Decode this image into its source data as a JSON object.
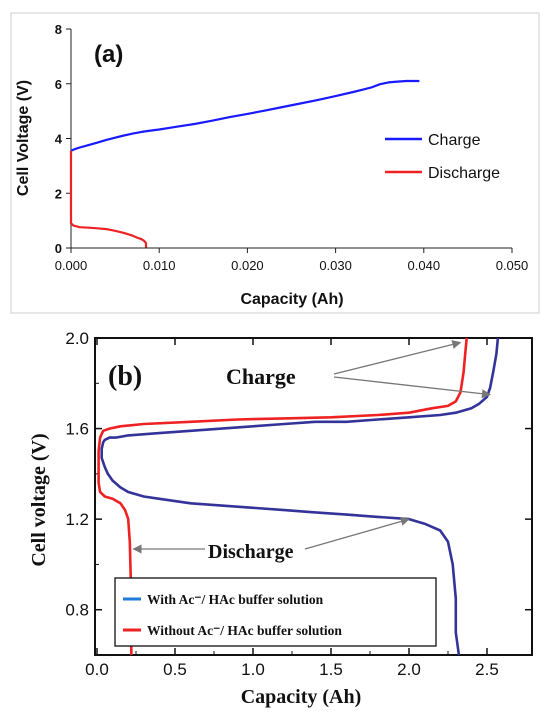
{
  "chart_data": [
    {
      "type": "line",
      "panel_label": "(a)",
      "xlabel": "Capacity (Ah)",
      "ylabel": "Cell Voltage (V)",
      "xlim": [
        0,
        0.05
      ],
      "ylim": [
        0,
        8
      ],
      "x_ticks": [
        "0.000",
        "0.010",
        "0.020",
        "0.030",
        "0.040",
        "0.050"
      ],
      "y_ticks": [
        "0",
        "2",
        "4",
        "6",
        "8"
      ],
      "grid": false,
      "legend_position": "right",
      "series": [
        {
          "name": "Charge",
          "color": "#1a1aff",
          "x": [
            0.0,
            0.0005,
            0.001,
            0.002,
            0.003,
            0.004,
            0.005,
            0.006,
            0.007,
            0.008,
            0.009,
            0.01,
            0.012,
            0.014,
            0.016,
            0.018,
            0.02,
            0.022,
            0.024,
            0.026,
            0.028,
            0.03,
            0.032,
            0.033,
            0.034,
            0.035,
            0.036,
            0.037,
            0.038,
            0.039,
            0.0395
          ],
          "y": [
            3.55,
            3.62,
            3.67,
            3.76,
            3.85,
            3.95,
            4.03,
            4.11,
            4.18,
            4.24,
            4.29,
            4.33,
            4.43,
            4.53,
            4.65,
            4.78,
            4.9,
            5.02,
            5.15,
            5.28,
            5.41,
            5.55,
            5.7,
            5.78,
            5.86,
            5.98,
            6.05,
            6.08,
            6.1,
            6.1,
            6.1
          ]
        },
        {
          "name": "Discharge",
          "color": "#ee2222",
          "x": [
            0.0,
            0.0,
            0.0003,
            0.001,
            0.002,
            0.003,
            0.004,
            0.005,
            0.006,
            0.007,
            0.0075,
            0.008,
            0.0083,
            0.0085,
            0.0085
          ],
          "y": [
            3.55,
            0.9,
            0.82,
            0.76,
            0.74,
            0.72,
            0.69,
            0.63,
            0.55,
            0.45,
            0.38,
            0.32,
            0.26,
            0.18,
            0.02
          ]
        }
      ]
    },
    {
      "type": "line",
      "panel_label": "(b)",
      "xlabel": "Capacity (Ah)",
      "ylabel": "Cell voltage (V)",
      "xlim": [
        0,
        2.75
      ],
      "ylim": [
        0.6,
        2.0
      ],
      "x_ticks": [
        "0.0",
        "0.5",
        "1.0",
        "1.5",
        "2.0",
        "2.5"
      ],
      "y_ticks": [
        "0.8",
        "1.2",
        "1.6",
        "2.0"
      ],
      "grid": false,
      "legend_position": "bottom-left",
      "annotations": [
        {
          "text": "Charge"
        },
        {
          "text": "Discharge"
        }
      ],
      "series": [
        {
          "name": "With Ac⁻/ HAc buffer solution",
          "color": "#33339a",
          "x": [
            2.32,
            2.3,
            2.3,
            2.28,
            2.25,
            2.2,
            2.1,
            2.0,
            1.8,
            1.6,
            1.4,
            1.2,
            1.0,
            0.8,
            0.6,
            0.4,
            0.3,
            0.2,
            0.15,
            0.1,
            0.07,
            0.05,
            0.03,
            0.03,
            0.04,
            0.05,
            0.08,
            0.12,
            0.2,
            0.4,
            0.6,
            0.8,
            1.0,
            1.2,
            1.4,
            1.6,
            1.8,
            2.0,
            2.2,
            2.3,
            2.4,
            2.45,
            2.5,
            2.52,
            2.54,
            2.56,
            2.57
          ],
          "y": [
            0.6,
            0.7,
            0.85,
            1.0,
            1.1,
            1.15,
            1.18,
            1.2,
            1.21,
            1.22,
            1.23,
            1.24,
            1.25,
            1.26,
            1.27,
            1.29,
            1.3,
            1.32,
            1.34,
            1.37,
            1.4,
            1.43,
            1.47,
            1.51,
            1.54,
            1.55,
            1.56,
            1.56,
            1.57,
            1.58,
            1.59,
            1.6,
            1.61,
            1.62,
            1.63,
            1.63,
            1.64,
            1.65,
            1.66,
            1.67,
            1.69,
            1.71,
            1.74,
            1.78,
            1.85,
            1.93,
            2.0
          ]
        },
        {
          "name": "Without Ac⁻/ HAc buffer solution",
          "color": "#ee2222",
          "x": [
            0.22,
            0.22,
            0.21,
            0.2,
            0.18,
            0.15,
            0.1,
            0.05,
            0.02,
            0.01,
            0.01,
            0.02,
            0.04,
            0.08,
            0.15,
            0.3,
            0.6,
            0.9,
            1.2,
            1.5,
            1.8,
            2.0,
            2.15,
            2.25,
            2.3,
            2.33,
            2.35,
            2.36,
            2.37
          ],
          "y": [
            0.6,
            0.85,
            1.1,
            1.2,
            1.24,
            1.27,
            1.29,
            1.3,
            1.32,
            1.36,
            1.5,
            1.56,
            1.59,
            1.6,
            1.61,
            1.62,
            1.63,
            1.64,
            1.645,
            1.65,
            1.66,
            1.67,
            1.69,
            1.7,
            1.72,
            1.76,
            1.85,
            1.93,
            2.0
          ]
        }
      ]
    }
  ]
}
